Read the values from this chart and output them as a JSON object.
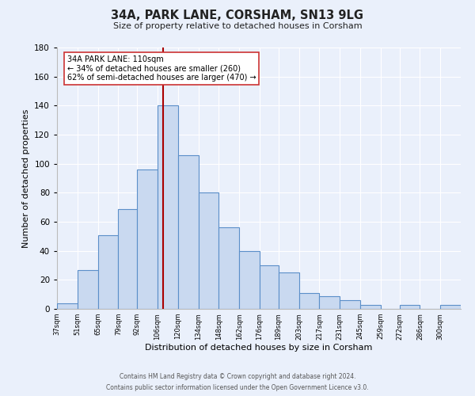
{
  "title": "34A, PARK LANE, CORSHAM, SN13 9LG",
  "subtitle": "Size of property relative to detached houses in Corsham",
  "xlabel": "Distribution of detached houses by size in Corsham",
  "ylabel": "Number of detached properties",
  "bar_color": "#c9d9f0",
  "bar_edge_color": "#5b8fc9",
  "background_color": "#eaf0fb",
  "grid_color": "#ffffff",
  "property_line_x": 110,
  "property_line_color": "#aa0000",
  "annotation_title": "34A PARK LANE: 110sqm",
  "annotation_line1": "← 34% of detached houses are smaller (260)",
  "annotation_line2": "62% of semi-detached houses are larger (470) →",
  "annotation_box_color": "#ffffff",
  "annotation_box_edge": "#cc3333",
  "bins": [
    37,
    51,
    65,
    79,
    92,
    106,
    120,
    134,
    148,
    162,
    176,
    189,
    203,
    217,
    231,
    245,
    259,
    272,
    286,
    300,
    314
  ],
  "counts": [
    4,
    27,
    51,
    69,
    96,
    140,
    106,
    80,
    56,
    40,
    30,
    25,
    11,
    9,
    6,
    3,
    0,
    3,
    0,
    3
  ],
  "ylim": [
    0,
    180
  ],
  "yticks": [
    0,
    20,
    40,
    60,
    80,
    100,
    120,
    140,
    160,
    180
  ],
  "footer1": "Contains HM Land Registry data © Crown copyright and database right 2024.",
  "footer2": "Contains public sector information licensed under the Open Government Licence v3.0."
}
